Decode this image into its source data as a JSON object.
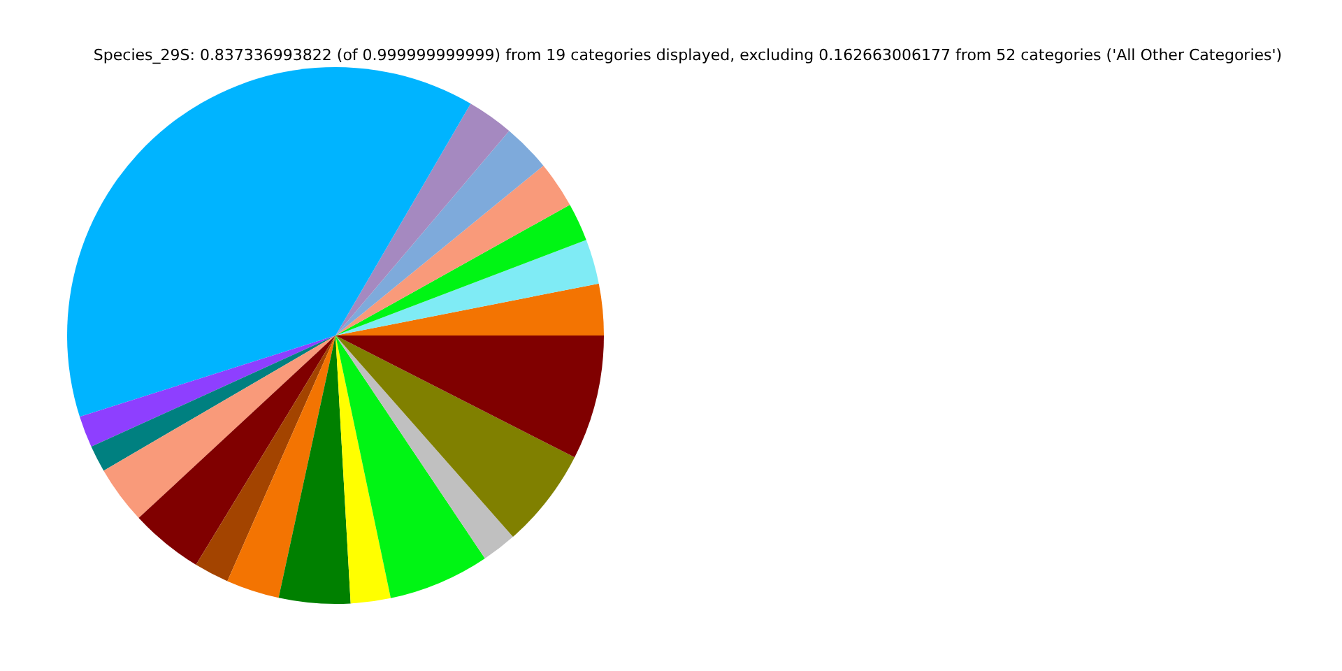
{
  "chart_data": {
    "type": "pie",
    "title": "Species_29S: 0.837336993822 (of 0.999999999999) from 19 categories displayed, excluding 0.162663006177 from 52 categories ('All Other Categories')",
    "categories": [
      null,
      null,
      null,
      null,
      null,
      null,
      null,
      null,
      null,
      null,
      null,
      null,
      null,
      null,
      null,
      null,
      null,
      null,
      null
    ],
    "values": [
      3.1,
      2.7,
      2.3,
      2.8,
      2.9,
      2.8,
      38.3,
      1.9,
      1.6,
      3.5,
      4.4,
      2.1,
      3.2,
      4.3,
      2.4,
      6.1,
      2.1,
      6.0,
      7.5
    ],
    "colors": [
      "#f37402",
      "#7febf5",
      "#00f514",
      "#f99a7a",
      "#7eaadb",
      "#a589c0",
      "#00b4ff",
      "#8e3fff",
      "#008080",
      "#f99a7a",
      "#800000",
      "#a34400",
      "#f37402",
      "#008000",
      "#ffff00",
      "#00f514",
      "#c0c0c0",
      "#808000",
      "#800000"
    ]
  }
}
